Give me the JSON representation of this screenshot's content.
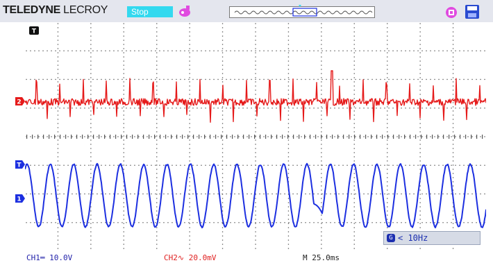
{
  "header": {
    "brand_bold": "TELEDYNE",
    "brand_rest": " LECROY",
    "status": "Stop",
    "icons": [
      "run-status-icon",
      "waveform-navigator-icon",
      "chip-icon",
      "save-icon"
    ]
  },
  "screen": {
    "markers": {
      "top_left": "T",
      "ch2": "2",
      "trigger": "T",
      "ch1": "1"
    }
  },
  "trigger_readout": {
    "icon": "G",
    "text": "< 10Hz"
  },
  "footer": {
    "ch1": "CH1═ 10.0V",
    "ch2": "CH2∿ 20.0mV",
    "timebase": "M 25.0ms"
  },
  "colors": {
    "ch1": "#1c2fe0",
    "ch2": "#e51a1a",
    "grid": "#555555",
    "status_bg": "#33d9ef"
  }
}
